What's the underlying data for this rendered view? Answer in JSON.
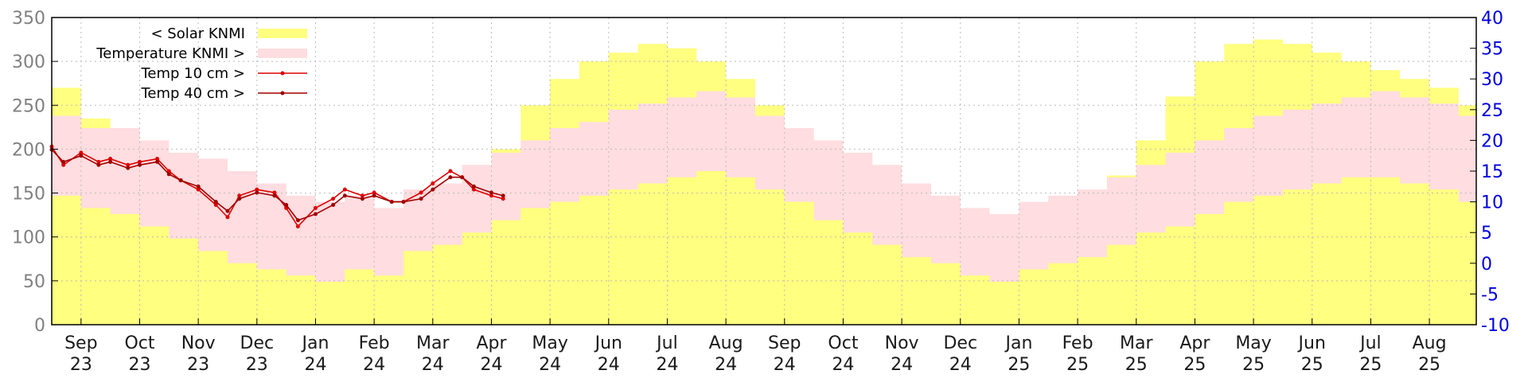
{
  "chart_data": {
    "type": "area",
    "x_months": [
      {
        "month": "Sep",
        "year": "23"
      },
      {
        "month": "Oct",
        "year": "23"
      },
      {
        "month": "Nov",
        "year": "23"
      },
      {
        "month": "Dec",
        "year": "23"
      },
      {
        "month": "Jan",
        "year": "24"
      },
      {
        "month": "Feb",
        "year": "24"
      },
      {
        "month": "Mar",
        "year": "24"
      },
      {
        "month": "Apr",
        "year": "24"
      },
      {
        "month": "May",
        "year": "24"
      },
      {
        "month": "Jun",
        "year": "24"
      },
      {
        "month": "Jul",
        "year": "24"
      },
      {
        "month": "Aug",
        "year": "24"
      },
      {
        "month": "Sep",
        "year": "24"
      },
      {
        "month": "Oct",
        "year": "24"
      },
      {
        "month": "Nov",
        "year": "24"
      },
      {
        "month": "Dec",
        "year": "24"
      },
      {
        "month": "Jan",
        "year": "25"
      },
      {
        "month": "Feb",
        "year": "25"
      },
      {
        "month": "Mar",
        "year": "25"
      },
      {
        "month": "Apr",
        "year": "25"
      },
      {
        "month": "May",
        "year": "25"
      },
      {
        "month": "Jun",
        "year": "25"
      },
      {
        "month": "Jul",
        "year": "25"
      },
      {
        "month": "Aug",
        "year": "25"
      }
    ],
    "y_left_ticks": [
      "0",
      "50",
      "100",
      "150",
      "200",
      "250",
      "300",
      "350"
    ],
    "y_left_range": [
      0,
      350
    ],
    "y_right_ticks": [
      "-10",
      "-5",
      "0",
      "5",
      "10",
      "15",
      "20",
      "25",
      "30",
      "35",
      "40"
    ],
    "y_right_range": [
      -10,
      40
    ],
    "x_range": [
      0,
      24.3
    ],
    "grid": true,
    "legend_position": "top-left",
    "legend": [
      {
        "label": "< Solar KNMI",
        "color": "#ffff80",
        "kind": "band"
      },
      {
        "label": "Temperature KNMI >",
        "color": "#ffdde0",
        "kind": "band"
      },
      {
        "label": "Temp 10 cm >",
        "color": "#e00000",
        "kind": "line"
      },
      {
        "label": "Temp 40 cm >",
        "color": "#a00000",
        "kind": "line"
      }
    ],
    "series": [
      {
        "name": "< Solar KNMI",
        "axis": "left",
        "color": "#ffff80",
        "x": [
          0,
          0.5,
          1,
          1.5,
          2,
          2.5,
          3,
          3.5,
          4,
          4.5,
          5,
          5.5,
          6,
          6.5,
          7,
          7.5,
          8,
          8.5,
          9,
          9.5,
          10,
          10.5,
          11,
          11.5,
          12,
          12.5,
          13,
          13.5,
          14,
          14.5,
          15,
          15.5,
          16,
          16.5,
          17,
          17.5,
          18,
          18.5,
          19,
          19.5,
          20,
          20.5,
          21,
          21.5,
          22,
          22.5,
          23,
          23.5,
          24,
          24.3
        ],
        "values": [
          270,
          235,
          215,
          195,
          170,
          140,
          115,
          90,
          80,
          70,
          65,
          75,
          100,
          135,
          160,
          200,
          250,
          280,
          300,
          310,
          320,
          315,
          300,
          280,
          250,
          215,
          180,
          150,
          120,
          95,
          85,
          70,
          60,
          75,
          100,
          130,
          170,
          210,
          260,
          300,
          320,
          325,
          320,
          310,
          300,
          290,
          280,
          270,
          250,
          240
        ]
      },
      {
        "name": "Temperature KNMI >",
        "axis": "right",
        "color": "#ffdde0",
        "x": [
          0,
          0.5,
          1,
          1.5,
          2,
          2.5,
          3,
          3.5,
          4,
          4.5,
          5,
          5.5,
          6,
          6.5,
          7,
          7.5,
          8,
          8.5,
          9,
          9.5,
          10,
          10.5,
          11,
          11.5,
          12,
          12.5,
          13,
          13.5,
          14,
          14.5,
          15,
          15.5,
          16,
          16.5,
          17,
          17.5,
          18,
          18.5,
          19,
          19.5,
          20,
          20.5,
          21,
          21.5,
          22,
          22.5,
          23,
          23.5,
          24,
          24.3
        ],
        "high": [
          24,
          22,
          22,
          20,
          18,
          17,
          15,
          13,
          11,
          10,
          11,
          9,
          12,
          13,
          16,
          18,
          20,
          22,
          23,
          25,
          26,
          27,
          28,
          27,
          24,
          22,
          20,
          18,
          16,
          13,
          11,
          9,
          8,
          10,
          11,
          12,
          14,
          16,
          18,
          20,
          22,
          24,
          25,
          26,
          27,
          28,
          27,
          26,
          24,
          22
        ],
        "low": [
          11,
          9,
          8,
          6,
          4,
          2,
          0,
          -1,
          -2,
          -3,
          -1,
          -2,
          2,
          3,
          5,
          7,
          9,
          10,
          11,
          12,
          13,
          14,
          15,
          14,
          12,
          10,
          7,
          5,
          3,
          1,
          0,
          -2,
          -3,
          -1,
          0,
          1,
          3,
          5,
          6,
          8,
          10,
          11,
          12,
          13,
          14,
          14,
          13,
          12,
          10,
          9
        ]
      },
      {
        "name": "Temp 10 cm >",
        "axis": "right",
        "color": "#e00000",
        "x": [
          0,
          0.2,
          0.5,
          0.8,
          1,
          1.3,
          1.5,
          1.8,
          2,
          2.2,
          2.5,
          2.8,
          3,
          3.2,
          3.5,
          3.8,
          4,
          4.2,
          4.5,
          4.8,
          5,
          5.3,
          5.5,
          5.8,
          6,
          6.3,
          6.5,
          6.8,
          7,
          7.2,
          7.5,
          7.7
        ],
        "values": [
          19,
          16,
          18,
          16.5,
          17,
          16,
          16.5,
          17,
          15,
          13.5,
          12,
          9.5,
          7.5,
          11,
          12,
          11.5,
          9,
          6,
          9,
          10.5,
          12,
          11,
          11.5,
          10,
          10,
          11.5,
          13,
          15,
          14,
          12,
          11,
          10.5
        ]
      },
      {
        "name": "Temp 40 cm >",
        "axis": "right",
        "color": "#a00000",
        "x": [
          0,
          0.2,
          0.5,
          0.8,
          1,
          1.3,
          1.5,
          1.8,
          2,
          2.2,
          2.5,
          2.8,
          3,
          3.2,
          3.5,
          3.8,
          4,
          4.2,
          4.5,
          4.8,
          5,
          5.3,
          5.5,
          5.8,
          6,
          6.3,
          6.5,
          6.8,
          7,
          7.2,
          7.5,
          7.7
        ],
        "values": [
          18.5,
          16.5,
          17.5,
          16,
          16.5,
          15.5,
          16,
          16.5,
          14.5,
          13.5,
          12.5,
          10,
          8.5,
          10.5,
          11.5,
          11,
          9.5,
          7,
          8,
          9.5,
          11,
          10.5,
          11,
          10,
          10,
          10.5,
          12,
          14,
          14,
          12.5,
          11.5,
          11
        ]
      }
    ]
  }
}
